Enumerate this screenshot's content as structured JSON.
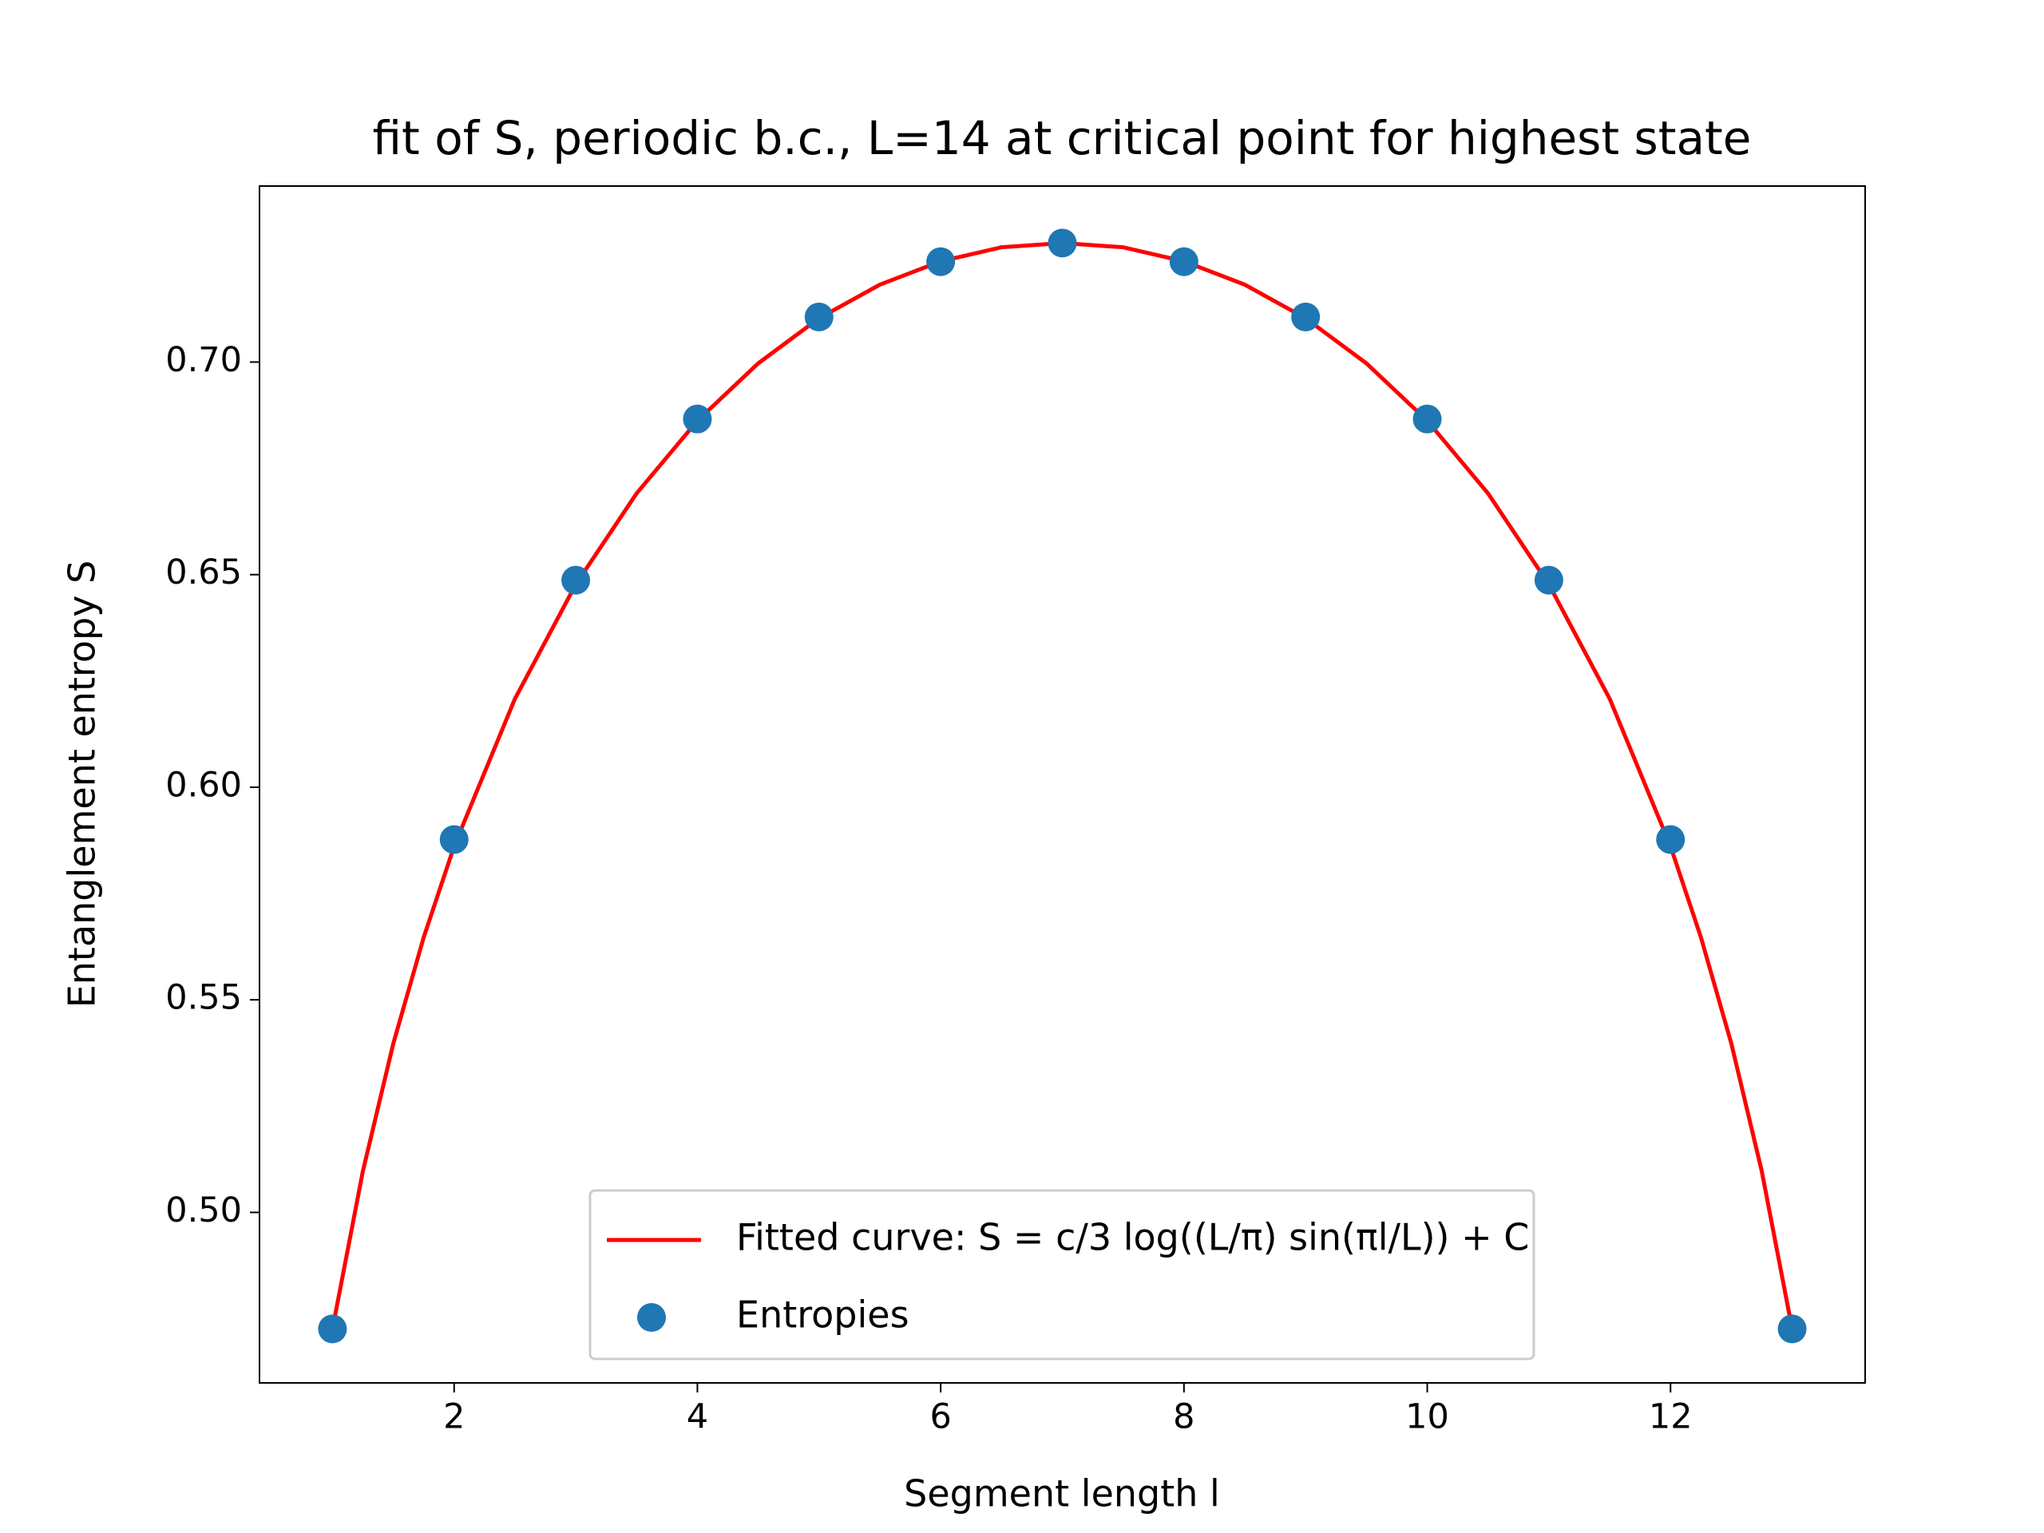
{
  "chart_data": {
    "type": "scatter-fit",
    "title": "fit of S, periodic b.c., L=14 at critical point for highest state",
    "x_label": "Segment length l",
    "y_label": "Entanglement entropy S",
    "xlim": [
      0.4,
      13.6
    ],
    "ylim": [
      0.4599,
      0.7414
    ],
    "xticks": [
      2,
      4,
      6,
      8,
      10,
      12
    ],
    "yticks": [
      {
        "value": 0.5,
        "label": "0.50"
      },
      {
        "value": 0.55,
        "label": "0.55"
      },
      {
        "value": 0.6,
        "label": "0.60"
      },
      {
        "value": 0.65,
        "label": "0.65"
      },
      {
        "value": 0.7,
        "label": "0.70"
      }
    ],
    "legend": "lower center",
    "series": [
      {
        "name": "Fitted curve: S = c/3 log((L/π) sin(πl/L)) + C",
        "kind": "line",
        "color": "#ff0000",
        "x": [
          1,
          1.25,
          1.5,
          1.75,
          2,
          2.5,
          3,
          3.5,
          4,
          4.5,
          5,
          5.5,
          6,
          6.5,
          7,
          7.5,
          8,
          8.5,
          9,
          9.5,
          10,
          10.5,
          11,
          11.5,
          12,
          12.25,
          12.5,
          12.75,
          13
        ],
        "values": [
          0.4726,
          0.5097,
          0.5397,
          0.5647,
          0.5861,
          0.6208,
          0.6477,
          0.6691,
          0.6862,
          0.6997,
          0.7103,
          0.7182,
          0.7237,
          0.727,
          0.728,
          0.727,
          0.7237,
          0.7182,
          0.7103,
          0.6997,
          0.6862,
          0.6691,
          0.6477,
          0.6208,
          0.5861,
          0.5647,
          0.5397,
          0.5097,
          0.4726
        ]
      },
      {
        "name": "Entropies",
        "kind": "points",
        "color": "#1f77b4",
        "x": [
          1,
          2,
          3,
          4,
          5,
          6,
          7,
          8,
          9,
          10,
          11,
          12,
          13
        ],
        "values": [
          0.4726,
          0.5877,
          0.6487,
          0.6866,
          0.7106,
          0.7236,
          0.728,
          0.7236,
          0.7106,
          0.6866,
          0.6487,
          0.5877,
          0.4726
        ]
      }
    ]
  }
}
